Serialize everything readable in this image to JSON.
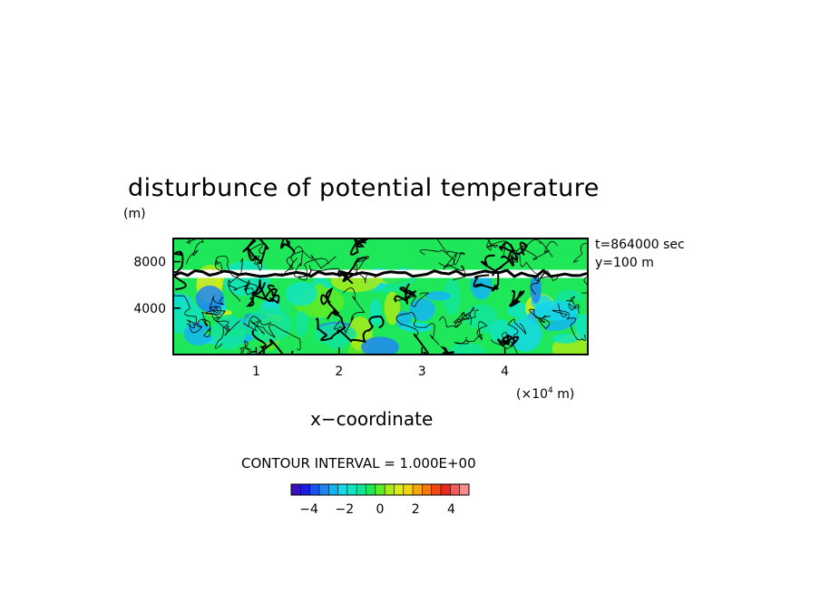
{
  "chart_data": {
    "type": "heatmap",
    "title": "disturbunce of potential temperature",
    "ylabel": "(m)",
    "xlabel": "x−coordinate",
    "x_unit_label": "(×10⁴ m)",
    "time_label": "t=864000 sec",
    "slice_label": "y=100 m",
    "x_ticks": [
      "1",
      "2",
      "3",
      "4"
    ],
    "x_tick_values": [
      1,
      2,
      3,
      4
    ],
    "y_ticks": [
      "4000",
      "8000"
    ],
    "y_tick_values": [
      4000,
      8000
    ],
    "xlim": [
      0,
      5
    ],
    "ylim": [
      0,
      10000
    ],
    "contour_interval_label": "CONTOUR INTERVAL = 1.000E+00",
    "contour_interval": 1.0,
    "colorbar": {
      "range": [
        -5,
        5
      ],
      "tick_labels": [
        "−4",
        "−2",
        "0",
        "2",
        "4"
      ],
      "tick_values": [
        -4,
        -2,
        0,
        2,
        4
      ],
      "colors": [
        "#3a10b8",
        "#1a20e0",
        "#1c52ee",
        "#1e86f4",
        "#15b4f4",
        "#14d8e8",
        "#10e4c0",
        "#12e49a",
        "#1ee85a",
        "#5cec28",
        "#a8ec18",
        "#dcec12",
        "#f4d410",
        "#f4a810",
        "#f47a10",
        "#f04a12",
        "#ea2a1a",
        "#f45a5a",
        "#f88a8a"
      ]
    }
  }
}
